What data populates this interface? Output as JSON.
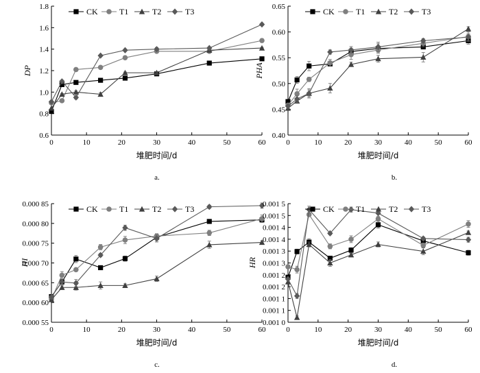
{
  "x_axis_label": "堆肥时间/d",
  "series_names": [
    "CK",
    "T1",
    "T2",
    "T3"
  ],
  "series_colors": {
    "CK": "#000000",
    "T1": "#7f7f7f",
    "T2": "#404040",
    "T3": "#595959"
  },
  "marker_shapes": {
    "CK": "square",
    "T1": "circle",
    "T2": "triangle",
    "T3": "diamond"
  },
  "chart_data": [
    {
      "type": "line",
      "panel_label": "a.",
      "ylabel": "DP",
      "x": [
        0,
        3,
        7,
        14,
        21,
        30,
        45,
        60
      ],
      "xlim": [
        0,
        60
      ],
      "xticks": [
        "0",
        "10",
        "20",
        "30",
        "40",
        "50",
        "60"
      ],
      "ylim": [
        0.6,
        1.8
      ],
      "yticks": [
        "0.6",
        "0.8",
        "1.0",
        "1.2",
        "1.4",
        "1.6",
        "1.8"
      ],
      "grid": false,
      "legend": "top-left",
      "series": [
        {
          "name": "CK",
          "values": [
            0.82,
            1.07,
            1.09,
            1.11,
            1.13,
            1.17,
            1.27,
            1.31
          ]
        },
        {
          "name": "T1",
          "values": [
            0.9,
            0.92,
            1.21,
            1.23,
            1.32,
            1.38,
            1.38,
            1.48
          ]
        },
        {
          "name": "T2",
          "values": [
            0.85,
            0.98,
            1.0,
            0.98,
            1.18,
            1.18,
            1.39,
            1.41
          ]
        },
        {
          "name": "T3",
          "values": [
            0.91,
            1.1,
            0.95,
            1.34,
            1.39,
            1.4,
            1.41,
            1.63
          ]
        }
      ]
    },
    {
      "type": "line",
      "panel_label": "b.",
      "ylabel": "PHA",
      "x": [
        0,
        3,
        7,
        14,
        21,
        30,
        45,
        60
      ],
      "xlim": [
        0,
        60
      ],
      "xticks": [
        "0",
        "10",
        "20",
        "30",
        "40",
        "50",
        "60"
      ],
      "ylim": [
        0.4,
        0.65
      ],
      "yticks": [
        "0.40",
        "0.45",
        "0.50",
        "0.55",
        "0.60",
        "0.65"
      ],
      "grid": false,
      "legend": "top-left",
      "series": [
        {
          "name": "CK",
          "values": [
            0.465,
            0.507,
            0.534,
            0.538,
            0.562,
            0.568,
            0.571,
            0.583
          ]
        },
        {
          "name": "T1",
          "values": [
            0.458,
            0.48,
            0.508,
            0.54,
            0.556,
            0.565,
            0.578,
            0.591
          ]
        },
        {
          "name": "T2",
          "values": [
            0.452,
            0.466,
            0.481,
            0.491,
            0.537,
            0.548,
            0.551,
            0.606
          ]
        },
        {
          "name": "T3",
          "values": [
            0.456,
            0.47,
            0.481,
            0.561,
            0.565,
            0.571,
            0.583,
            0.59
          ]
        }
      ]
    },
    {
      "type": "line",
      "panel_label": "c.",
      "ylabel": "HI",
      "x": [
        0,
        3,
        7,
        14,
        21,
        30,
        45,
        60
      ],
      "xlim": [
        0,
        60
      ],
      "xticks": [
        "0",
        "10",
        "20",
        "30",
        "40",
        "50",
        "60"
      ],
      "ylim": [
        0.00055,
        0.00085
      ],
      "yticks": [
        "0.000 55",
        "0.000 60",
        "0.000 65",
        "0.000 70",
        "0.000 75",
        "0.000 80",
        "0.000 85"
      ],
      "grid": false,
      "legend": "top-left",
      "series": [
        {
          "name": "CK",
          "values": [
            0.000615,
            0.000652,
            0.00071,
            0.000688,
            0.000711,
            0.000765,
            0.000805,
            0.000809
          ]
        },
        {
          "name": "T1",
          "values": [
            0.000608,
            0.000669,
            0.000683,
            0.00074,
            0.000758,
            0.000768,
            0.000776,
            0.000812
          ]
        },
        {
          "name": "T2",
          "values": [
            0.000607,
            0.000638,
            0.000638,
            0.000643,
            0.000643,
            0.00066,
            0.000746,
            0.000752
          ]
        },
        {
          "name": "T3",
          "values": [
            0.000614,
            0.000652,
            0.000649,
            0.00072,
            0.000789,
            0.000762,
            0.000842,
            0.000845
          ]
        }
      ]
    },
    {
      "type": "line",
      "panel_label": "d.",
      "ylabel": "HR",
      "x": [
        0,
        3,
        7,
        14,
        21,
        30,
        45,
        60
      ],
      "xlim": [
        0,
        60
      ],
      "xticks": [
        "0",
        "10",
        "20",
        "30",
        "40",
        "50",
        "60"
      ],
      "ylim": [
        0.001,
        0.0015
      ],
      "yticks": [
        "0.001 0",
        "0.001 1",
        "0.001 1",
        "0.001 2",
        "0.001 2",
        "0.001 3",
        "0.001 3",
        "0.001 4",
        "0.001 4",
        "0.001 5",
        "0.001 5"
      ],
      "grid": false,
      "legend": "top-left",
      "series": [
        {
          "name": "CK",
          "values": [
            0.00119,
            0.001298,
            0.001338,
            0.00127,
            0.001304,
            0.001411,
            0.001343,
            0.001293
          ]
        },
        {
          "name": "T1",
          "values": [
            0.001234,
            0.001222,
            0.001454,
            0.00132,
            0.00135,
            0.001436,
            0.001324,
            0.001414
          ]
        },
        {
          "name": "T2",
          "values": [
            0.00117,
            0.00102,
            0.001328,
            0.00125,
            0.001284,
            0.001328,
            0.001299,
            0.001378
          ]
        },
        {
          "name": "T3",
          "values": [
            0.001182,
            0.001111,
            0.001475,
            0.001375,
            0.001475,
            0.00146,
            0.001353,
            0.001348
          ]
        }
      ]
    }
  ]
}
